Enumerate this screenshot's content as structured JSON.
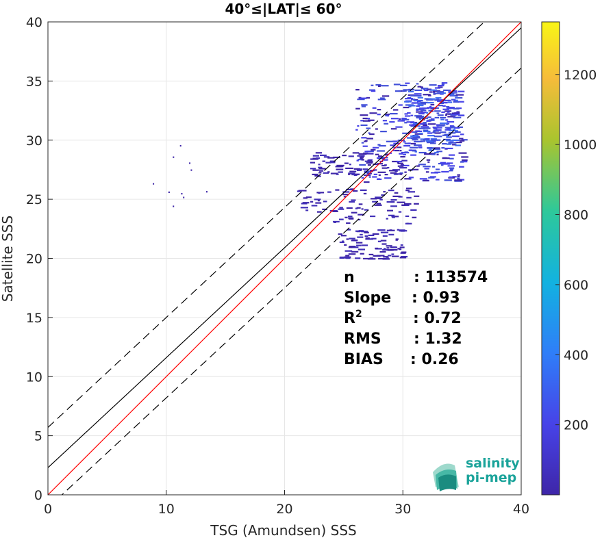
{
  "chart_data": {
    "type": "heatmap",
    "title": "40°≤|LAT|≤ 60°",
    "xlabel": "TSG (Amundsen) SSS",
    "ylabel": "Satellite SSS",
    "xlim": [
      0,
      40
    ],
    "ylim": [
      0,
      40
    ],
    "xticks": [
      "0",
      "10",
      "20",
      "30",
      "40"
    ],
    "yticks": [
      "0",
      "5",
      "10",
      "15",
      "20",
      "25",
      "30",
      "35",
      "40"
    ],
    "grid": true,
    "colorbar": {
      "min": 0,
      "max": 1350,
      "ticks": [
        "200",
        "400",
        "600",
        "800",
        "1000",
        "1200"
      ],
      "colormap": "parula"
    },
    "reference_lines": {
      "identity": {
        "color": "#ff0000",
        "slope": 1,
        "intercept": 0
      },
      "fit": {
        "color": "#000000",
        "slope": 0.93,
        "intercept": 2.3
      },
      "bounds": {
        "color": "#000000",
        "style": "dashed",
        "slope": 0.93,
        "intercepts": [
          5.7,
          -1.1
        ]
      }
    },
    "density_clusters": [
      {
        "x": [
          26,
          35
        ],
        "y": [
          26.5,
          35
        ],
        "level": "high"
      },
      {
        "x": [
          30,
          34.5
        ],
        "y": [
          29,
          34.5
        ],
        "level": "peak"
      },
      {
        "x": [
          22,
          30
        ],
        "y": [
          27,
          29
        ],
        "level": "low"
      },
      {
        "x": [
          21,
          31
        ],
        "y": [
          23,
          26
        ],
        "level": "low"
      },
      {
        "x": [
          24.5,
          30
        ],
        "y": [
          20,
          22.5
        ],
        "level": "low"
      },
      {
        "x": [
          8.5,
          13.5
        ],
        "y": [
          24,
          30
        ],
        "level": "sparse"
      }
    ]
  },
  "stats": [
    {
      "label": "n",
      "value": ": 113574"
    },
    {
      "label": "Slope",
      "value": ": 0.93"
    },
    {
      "label": "R",
      "sup": "2",
      "value": ": 0.72"
    },
    {
      "label": "RMS",
      "value": ": 1.32"
    },
    {
      "label": "BIAS",
      "value": ": 0.26"
    }
  ],
  "logo": {
    "line1": "salinity",
    "line2": "pi-mep"
  }
}
